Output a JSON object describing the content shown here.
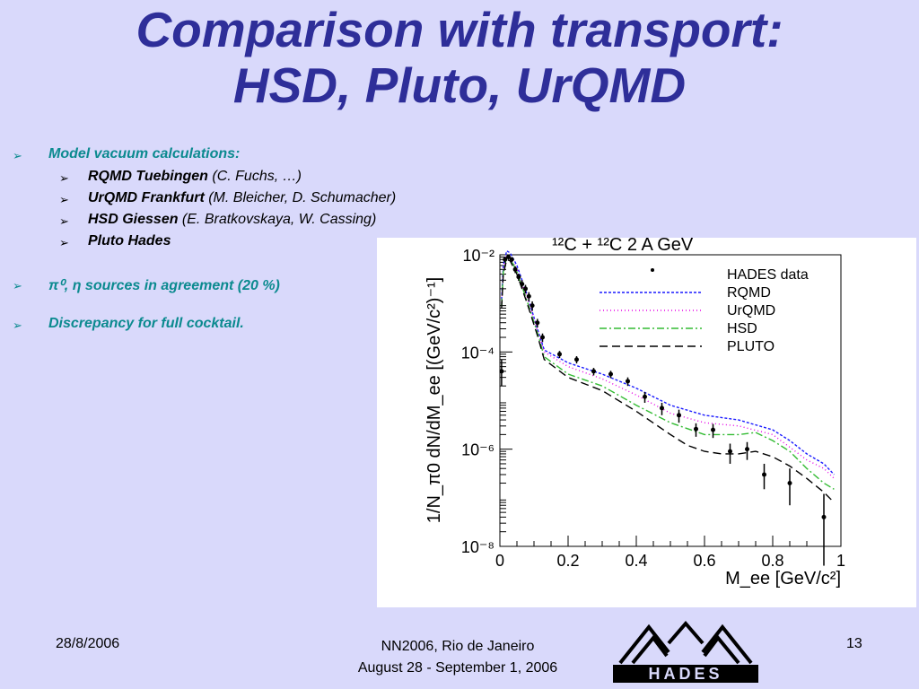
{
  "slide": {
    "title_line1": "Comparison with transport:",
    "title_line2": "HSD, Pluto, UrQMD",
    "bullets": [
      {
        "text": "Model vacuum calculations:"
      },
      {
        "text": "π⁰, η sources in agreement (20 %)"
      },
      {
        "text": "Discrepancy for full cocktail."
      }
    ],
    "sub_bullets": [
      {
        "name": "RQMD Tuebingen",
        "who": " (C. Fuchs, …)"
      },
      {
        "name": "UrQMD Frankfurt",
        "who": " (M. Bleicher, D. Schumacher)"
      },
      {
        "name": "HSD Giessen",
        "who": " (E. Bratkovskaya,  W. Cassing)"
      },
      {
        "name": "Pluto Hades",
        "who": ""
      }
    ],
    "footer": {
      "date": "28/8/2006",
      "conf_line1": "NN2006, Rio de Janeiro",
      "conf_line2": "August 28 - September 1, 2006",
      "page": "13",
      "logo_text": "HADES"
    }
  },
  "chart_data": {
    "type": "line",
    "title": "¹²C + ¹²C  2 A GeV",
    "xlabel": "M_ee [GeV/c²]",
    "ylabel": "1/N_π0  dN/dM_ee  [(GeV/c²)⁻¹]",
    "x_ticks": [
      "0",
      "0.2",
      "0.4",
      "0.6",
      "0.8",
      "1"
    ],
    "y_ticks": [
      "10⁻⁸",
      "10⁻⁶",
      "10⁻⁴",
      "10⁻²"
    ],
    "xlim": [
      0,
      1
    ],
    "ylim_log10": [
      -8,
      -2
    ],
    "legend_position": "top-right",
    "series": [
      {
        "name": "RQMD",
        "color": "#1a1aff",
        "dash": "3,2",
        "x": [
          0.005,
          0.01,
          0.02,
          0.03,
          0.05,
          0.08,
          0.11,
          0.13,
          0.2,
          0.3,
          0.4,
          0.5,
          0.6,
          0.7,
          0.8,
          0.85,
          0.9,
          0.95,
          0.98
        ],
        "y": [
          0.0012,
          0.006,
          0.012,
          0.011,
          0.006,
          0.0015,
          0.0003,
          0.00011,
          6e-05,
          3.5e-05,
          1.8e-05,
          8e-06,
          5e-06,
          4e-06,
          2.5e-06,
          1.5e-06,
          8e-07,
          5e-07,
          3e-07
        ]
      },
      {
        "name": "UrQMD",
        "color": "#e600e6",
        "dash": "1,3",
        "x": [
          0.005,
          0.01,
          0.02,
          0.03,
          0.05,
          0.08,
          0.11,
          0.13,
          0.2,
          0.3,
          0.4,
          0.5,
          0.6,
          0.7,
          0.8,
          0.85,
          0.9,
          0.95,
          0.98
        ],
        "y": [
          0.001,
          0.005,
          0.01,
          0.009,
          0.005,
          0.0013,
          0.00028,
          0.0001,
          5e-05,
          2.8e-05,
          1.3e-05,
          5.5e-06,
          3.5e-06,
          3e-06,
          2e-06,
          1.1e-06,
          6e-07,
          4e-07,
          2.5e-07
        ]
      },
      {
        "name": "HSD",
        "color": "#33bb33",
        "dash": "8,3,2,3",
        "x": [
          0.005,
          0.01,
          0.02,
          0.03,
          0.05,
          0.08,
          0.11,
          0.13,
          0.2,
          0.3,
          0.4,
          0.5,
          0.6,
          0.7,
          0.75,
          0.8,
          0.85,
          0.9,
          0.95,
          0.98
        ],
        "y": [
          0.0009,
          0.0045,
          0.009,
          0.0085,
          0.0045,
          0.0011,
          0.00025,
          8e-05,
          3.5e-05,
          2e-05,
          8e-06,
          3.5e-06,
          2e-06,
          2e-06,
          2.2e-06,
          1.5e-06,
          9e-07,
          4e-07,
          2e-07,
          1.5e-07
        ]
      },
      {
        "name": "PLUTO",
        "color": "#000000",
        "dash": "9,5",
        "x": [
          0.005,
          0.01,
          0.02,
          0.03,
          0.05,
          0.08,
          0.11,
          0.13,
          0.2,
          0.3,
          0.4,
          0.5,
          0.55,
          0.6,
          0.65,
          0.7,
          0.75,
          0.8,
          0.85,
          0.9,
          0.95,
          0.98
        ],
        "y": [
          0.0008,
          0.004,
          0.008,
          0.0075,
          0.004,
          0.001,
          0.00022,
          7e-05,
          3e-05,
          1.6e-05,
          6e-06,
          2e-06,
          1.2e-06,
          9e-07,
          8e-07,
          8e-07,
          9e-07,
          7e-07,
          4.5e-07,
          2.5e-07,
          1.3e-07,
          8e-08
        ]
      }
    ],
    "data_points": {
      "name": "HADES data",
      "x": [
        0.005,
        0.015,
        0.025,
        0.035,
        0.045,
        0.055,
        0.065,
        0.075,
        0.085,
        0.095,
        0.11,
        0.125,
        0.175,
        0.225,
        0.275,
        0.325,
        0.375,
        0.425,
        0.475,
        0.525,
        0.575,
        0.625,
        0.675,
        0.725,
        0.775,
        0.85,
        0.95
      ],
      "y": [
        4e-05,
        0.008,
        0.009,
        0.008,
        0.005,
        0.0035,
        0.0025,
        0.002,
        0.0014,
        0.0009,
        0.0004,
        0.0002,
        9e-05,
        7e-05,
        4e-05,
        3.5e-05,
        2.5e-05,
        1.2e-05,
        7e-06,
        5e-06,
        2.6e-06,
        2.5e-06,
        9e-07,
        1e-06,
        3e-07,
        2e-07,
        4e-08
      ],
      "err_lo": [
        2e-05,
        0.001,
        0.001,
        0.001,
        0.0008,
        0.0006,
        0.0005,
        0.0004,
        0.0003,
        0.0002,
        8e-05,
        4e-05,
        1.5e-05,
        1.2e-05,
        7e-06,
        6e-06,
        5e-06,
        3e-06,
        2e-06,
        1.5e-06,
        8e-07,
        8e-07,
        4e-07,
        4e-07,
        1.5e-07,
        1.3e-07,
        3.6e-08
      ],
      "err_hi": [
        3e-05,
        0.001,
        0.001,
        0.001,
        0.0008,
        0.0006,
        0.0005,
        0.0004,
        0.0003,
        0.0002,
        8e-05,
        4e-05,
        1.5e-05,
        1.2e-05,
        7e-06,
        6e-06,
        5e-06,
        3e-06,
        2e-06,
        1.5e-06,
        8e-07,
        8e-07,
        4e-07,
        4e-07,
        2e-07,
        2e-07,
        8e-08
      ]
    }
  }
}
